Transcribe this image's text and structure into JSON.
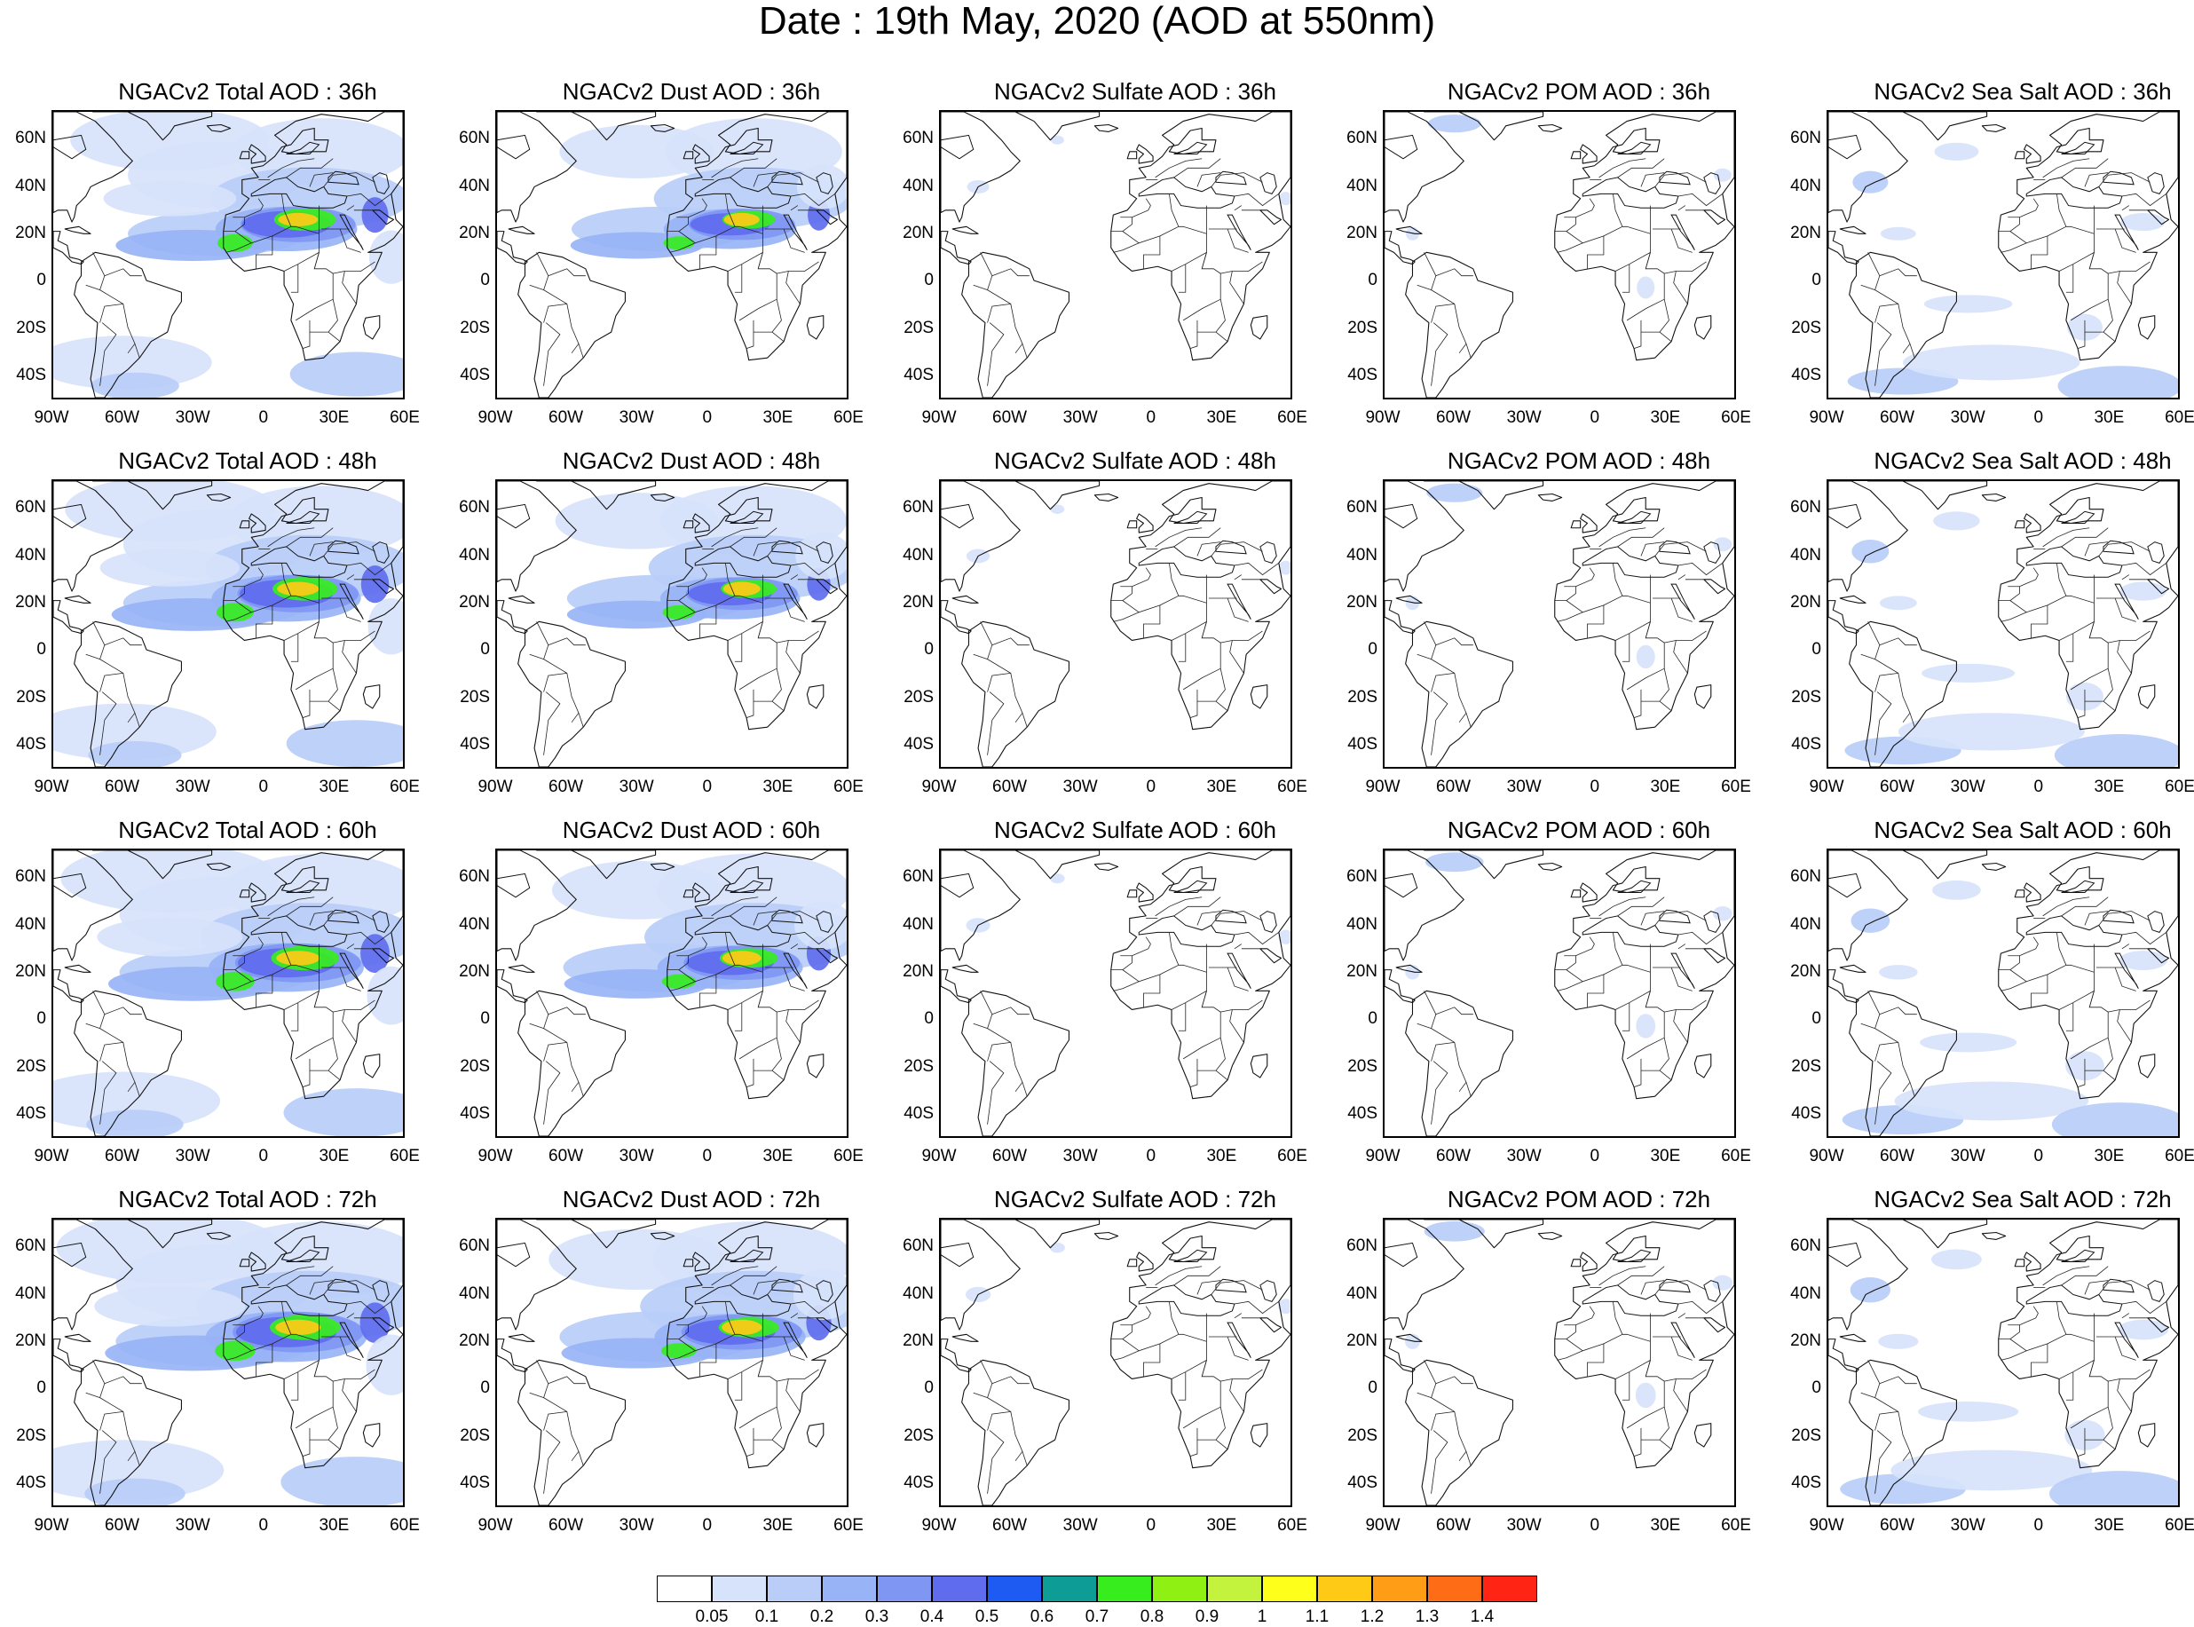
{
  "title": "Date : 19th May, 2020 (AOD at 550nm)",
  "panels": [
    {
      "title": "NGACv2 Total AOD : 36h",
      "species": "total",
      "hour": "36h"
    },
    {
      "title": "NGACv2 Dust AOD : 36h",
      "species": "dust",
      "hour": "36h"
    },
    {
      "title": "NGACv2 Sulfate AOD : 36h",
      "species": "sulfate",
      "hour": "36h"
    },
    {
      "title": "NGACv2 POM AOD : 36h",
      "species": "pom",
      "hour": "36h"
    },
    {
      "title": "NGACv2 Sea Salt AOD : 36h",
      "species": "seasalt",
      "hour": "36h"
    },
    {
      "title": "NGACv2 Total AOD : 48h",
      "species": "total",
      "hour": "48h"
    },
    {
      "title": "NGACv2 Dust AOD : 48h",
      "species": "dust",
      "hour": "48h"
    },
    {
      "title": "NGACv2 Sulfate AOD : 48h",
      "species": "sulfate",
      "hour": "48h"
    },
    {
      "title": "NGACv2 POM AOD : 48h",
      "species": "pom",
      "hour": "48h"
    },
    {
      "title": "NGACv2 Sea Salt AOD : 48h",
      "species": "seasalt",
      "hour": "48h"
    },
    {
      "title": "NGACv2 Total AOD : 60h",
      "species": "total",
      "hour": "60h"
    },
    {
      "title": "NGACv2 Dust AOD : 60h",
      "species": "dust",
      "hour": "60h"
    },
    {
      "title": "NGACv2 Sulfate AOD : 60h",
      "species": "sulfate",
      "hour": "60h"
    },
    {
      "title": "NGACv2 POM AOD : 60h",
      "species": "pom",
      "hour": "60h"
    },
    {
      "title": "NGACv2 Sea Salt AOD : 60h",
      "species": "seasalt",
      "hour": "60h"
    },
    {
      "title": "NGACv2 Total AOD : 72h",
      "species": "total",
      "hour": "72h"
    },
    {
      "title": "NGACv2 Dust AOD : 72h",
      "species": "dust",
      "hour": "72h"
    },
    {
      "title": "NGACv2 Sulfate AOD : 72h",
      "species": "sulfate",
      "hour": "72h"
    },
    {
      "title": "NGACv2 POM AOD : 72h",
      "species": "pom",
      "hour": "72h"
    },
    {
      "title": "NGACv2 Sea Salt  AOD : 72h",
      "species": "seasalt",
      "hour": "72h"
    }
  ],
  "lat_ticks": [
    "60N",
    "40N",
    "20N",
    "0",
    "20S",
    "40S"
  ],
  "lat_values": [
    60,
    40,
    20,
    0,
    -20,
    -40
  ],
  "lon_ticks": [
    "90W",
    "60W",
    "30W",
    "0",
    "30E",
    "60E"
  ],
  "lon_values": [
    -90,
    -60,
    -30,
    0,
    30,
    60
  ],
  "map_extent": {
    "lon": [
      -90,
      60
    ],
    "lat": [
      -50,
      72
    ]
  },
  "colorbar": {
    "labels": [
      "0.05",
      "0.1",
      "0.2",
      "0.3",
      "0.4",
      "0.5",
      "0.6",
      "0.7",
      "0.8",
      "0.9",
      "1",
      "1.1",
      "1.2",
      "1.3",
      "1.4"
    ],
    "colors": [
      "#ffffff",
      "#d7e3fb",
      "#b9cdf8",
      "#98b3f6",
      "#7f97f3",
      "#5f6cee",
      "#1e5bf2",
      "#0d9c96",
      "#37ed1e",
      "#8ff014",
      "#c3f33c",
      "#ffff1c",
      "#ffca16",
      "#ff9d17",
      "#ff6c16",
      "#ff2414"
    ]
  }
}
